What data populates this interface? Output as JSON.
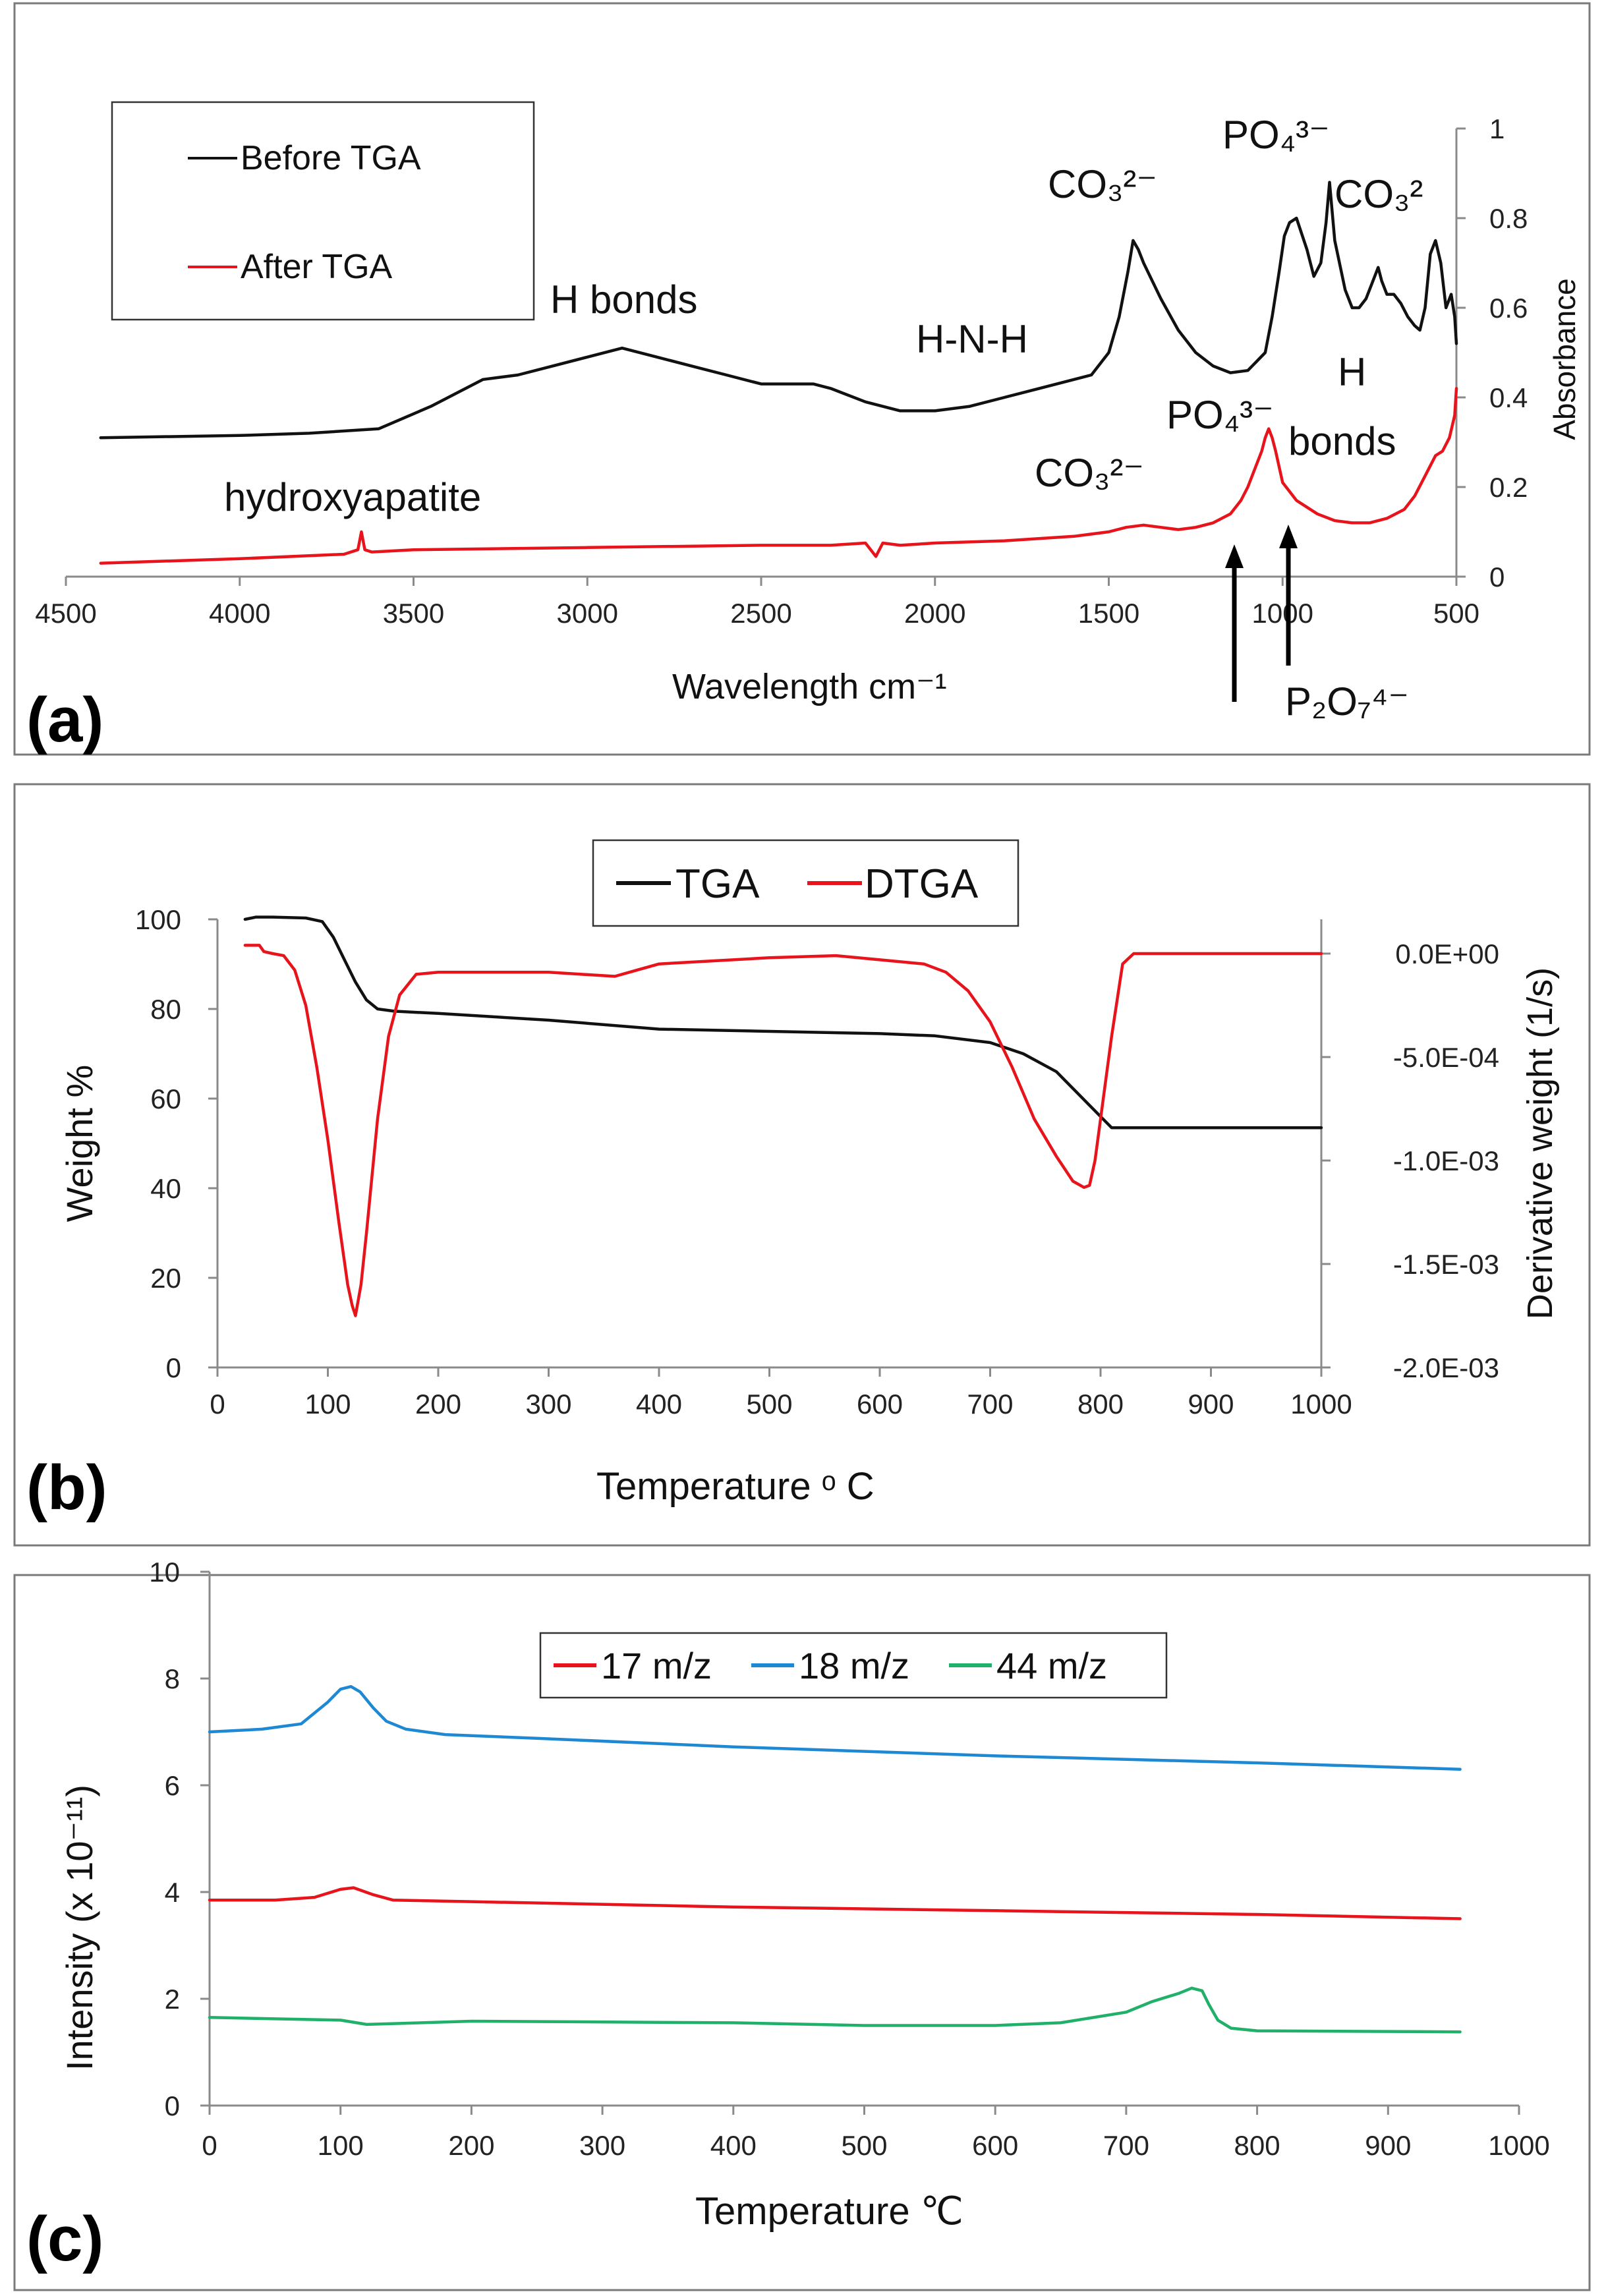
{
  "colors": {
    "before_tga": "#111111",
    "after_tga": "#e8141c",
    "tga": "#111111",
    "dtga": "#e8141c",
    "mz17": "#e8141c",
    "mz18": "#1e88d2",
    "mz44": "#21b06a"
  },
  "panels": {
    "a": {
      "label": "(a)",
      "xlabel": "Wavelength cm⁻¹",
      "ylabel": "Absorbance",
      "legend": [
        "Before TGA",
        "After TGA"
      ],
      "annotations": {
        "h_bonds": "H bonds",
        "hnh": "H-N-H",
        "co3_top_a": "CO₃²⁻",
        "po4_top": "PO₄³⁻",
        "co3_top_b": "CO₃²",
        "h_right": "H",
        "bonds_right": "bonds",
        "hydroxyapatite": "hydroxyapatite",
        "co3_bottom": "CO₃²⁻",
        "po4_bottom": "PO₄³⁻",
        "p2o7": "P₂O₇⁴⁻"
      }
    },
    "b": {
      "label": "(b)",
      "xlabel": "Temperature ᵒ C",
      "ylabel": "Weight %",
      "y2label": "Derivative weight (1/s)",
      "legend": [
        "TGA",
        "DTGA"
      ]
    },
    "c": {
      "label": "(c)",
      "xlabel": "Temperature ℃",
      "ylabel": "Intensity (x 10⁻¹¹)",
      "legend": [
        "17 m/z",
        "18 m/z",
        "44 m/z"
      ]
    }
  },
  "chart_data": [
    {
      "type": "line",
      "panel": "a",
      "xlabel": "Wavelength cm⁻¹",
      "ylabel": "Absorbance",
      "xlim": [
        4500,
        500
      ],
      "ylim": [
        0,
        1
      ],
      "x_reversed": true,
      "x_ticks": [
        4500,
        4000,
        3500,
        3000,
        2500,
        2000,
        1500,
        1000,
        500
      ],
      "x_tick_labels": [
        "4500",
        "4000",
        "3500",
        "3000",
        "2500",
        "2000",
        "1500",
        "1000",
        "500"
      ],
      "y_ticks": [
        0,
        0.2,
        0.4,
        0.6,
        0.8,
        1
      ],
      "y_tick_labels": [
        "0",
        "0.2",
        "0.4",
        "0.6",
        "0.8",
        "1"
      ],
      "grid": false,
      "legend_position": "top-left",
      "series": [
        {
          "name": "Before TGA",
          "x": [
            4400,
            4000,
            3800,
            3600,
            3450,
            3300,
            3200,
            3100,
            3000,
            2900,
            2800,
            2700,
            2600,
            2500,
            2350,
            2300,
            2200,
            2100,
            2000,
            1900,
            1800,
            1700,
            1600,
            1550,
            1500,
            1470,
            1445,
            1430,
            1415,
            1400,
            1350,
            1300,
            1250,
            1200,
            1150,
            1100,
            1050,
            1030,
            1010,
            995,
            980,
            960,
            930,
            910,
            890,
            875,
            865,
            850,
            820,
            800,
            780,
            760,
            740,
            725,
            715,
            700,
            680,
            660,
            640,
            620,
            605,
            590,
            575,
            560,
            545,
            530,
            515,
            505,
            500
          ],
          "y": [
            0.31,
            0.315,
            0.32,
            0.33,
            0.38,
            0.44,
            0.45,
            0.47,
            0.49,
            0.51,
            0.49,
            0.47,
            0.45,
            0.43,
            0.43,
            0.42,
            0.39,
            0.37,
            0.37,
            0.38,
            0.4,
            0.42,
            0.44,
            0.45,
            0.5,
            0.58,
            0.68,
            0.75,
            0.73,
            0.7,
            0.62,
            0.55,
            0.5,
            0.47,
            0.455,
            0.46,
            0.5,
            0.58,
            0.68,
            0.76,
            0.79,
            0.8,
            0.73,
            0.67,
            0.7,
            0.79,
            0.88,
            0.75,
            0.64,
            0.6,
            0.6,
            0.62,
            0.66,
            0.69,
            0.66,
            0.63,
            0.63,
            0.61,
            0.58,
            0.56,
            0.55,
            0.6,
            0.72,
            0.75,
            0.7,
            0.6,
            0.63,
            0.58,
            0.52
          ]
        },
        {
          "name": "After TGA",
          "x": [
            4400,
            4000,
            3700,
            3660,
            3650,
            3640,
            3620,
            3500,
            3000,
            2500,
            2300,
            2200,
            2170,
            2150,
            2100,
            2000,
            1800,
            1600,
            1500,
            1450,
            1400,
            1350,
            1300,
            1250,
            1200,
            1150,
            1120,
            1100,
            1080,
            1060,
            1050,
            1040,
            1030,
            1020,
            1000,
            980,
            960,
            900,
            850,
            800,
            750,
            700,
            650,
            620,
            600,
            580,
            560,
            540,
            520,
            505,
            500
          ],
          "y": [
            0.03,
            0.04,
            0.05,
            0.06,
            0.1,
            0.06,
            0.055,
            0.06,
            0.065,
            0.07,
            0.07,
            0.075,
            0.045,
            0.075,
            0.07,
            0.075,
            0.08,
            0.09,
            0.1,
            0.11,
            0.115,
            0.11,
            0.105,
            0.11,
            0.12,
            0.14,
            0.17,
            0.2,
            0.24,
            0.28,
            0.31,
            0.33,
            0.31,
            0.28,
            0.21,
            0.19,
            0.17,
            0.14,
            0.125,
            0.12,
            0.12,
            0.13,
            0.15,
            0.18,
            0.21,
            0.24,
            0.27,
            0.28,
            0.31,
            0.36,
            0.42
          ]
        }
      ]
    },
    {
      "type": "line",
      "panel": "b",
      "xlabel": "Temperature ᵒ C",
      "ylabel": "Weight %",
      "y2label": "Derivative weight (1/s)",
      "xlim": [
        0,
        1000
      ],
      "ylim": [
        0,
        100
      ],
      "y2lim": [
        -0.002,
        0.0002
      ],
      "x_ticks": [
        0,
        100,
        200,
        300,
        400,
        500,
        600,
        700,
        800,
        900,
        1000
      ],
      "x_tick_labels": [
        "0",
        "100",
        "200",
        "300",
        "400",
        "500",
        "600",
        "700",
        "800",
        "900",
        "1000"
      ],
      "y_ticks": [
        0,
        20,
        40,
        60,
        80,
        100
      ],
      "y_tick_labels": [
        "0",
        "20",
        "40",
        "60",
        "80",
        "100"
      ],
      "y2_ticks": [
        0,
        -0.0005,
        -0.001,
        -0.0015,
        -0.002
      ],
      "y2_tick_labels": [
        "0.0E+00",
        "-5.0E-04",
        "-1.0E-03",
        "-1.5E-03",
        "-2.0E-03"
      ],
      "grid": false,
      "legend_position": "top-center",
      "series": [
        {
          "name": "TGA",
          "axis": "left",
          "x": [
            25,
            35,
            50,
            80,
            95,
            105,
            115,
            125,
            135,
            145,
            160,
            200,
            300,
            400,
            500,
            600,
            650,
            700,
            730,
            760,
            780,
            800,
            810,
            850,
            900,
            1000
          ],
          "y": [
            100,
            100.5,
            100.5,
            100.3,
            99.5,
            96,
            91,
            86,
            82,
            80,
            79.5,
            79,
            77.5,
            75.5,
            75,
            74.5,
            74,
            72.5,
            70,
            66,
            61,
            56,
            53.5,
            53.5,
            53.5,
            53.5
          ]
        },
        {
          "name": "DTGA",
          "axis": "right",
          "x": [
            25,
            38,
            42,
            50,
            60,
            70,
            80,
            90,
            100,
            110,
            118,
            122,
            125,
            130,
            135,
            145,
            155,
            165,
            180,
            200,
            300,
            360,
            380,
            400,
            500,
            560,
            600,
            640,
            660,
            680,
            700,
            720,
            740,
            760,
            775,
            785,
            790,
            795,
            800,
            810,
            820,
            830,
            900,
            1000
          ],
          "y": [
            4e-05,
            4e-05,
            1e-05,
            0.0,
            -1e-05,
            -8e-05,
            -0.00025,
            -0.00055,
            -0.0009,
            -0.0013,
            -0.0016,
            -0.0017,
            -0.00175,
            -0.0016,
            -0.00135,
            -0.0008,
            -0.0004,
            -0.0002,
            -0.0001,
            -9e-05,
            -9e-05,
            -0.00011,
            -8e-05,
            -5e-05,
            -2e-05,
            -1e-05,
            -3e-05,
            -5e-05,
            -9e-05,
            -0.00018,
            -0.00033,
            -0.00055,
            -0.0008,
            -0.00098,
            -0.0011,
            -0.00113,
            -0.00112,
            -0.001,
            -0.0008,
            -0.0004,
            -5e-05,
            0.0,
            0.0,
            0.0
          ]
        }
      ]
    },
    {
      "type": "line",
      "panel": "c",
      "xlabel": "Temperature ℃",
      "ylabel": "Intensity (x 10⁻¹¹)",
      "xlim": [
        0,
        1000
      ],
      "ylim": [
        0,
        10
      ],
      "x_ticks": [
        0,
        100,
        200,
        300,
        400,
        500,
        600,
        700,
        800,
        900,
        1000
      ],
      "x_tick_labels": [
        "0",
        "100",
        "200",
        "300",
        "400",
        "500",
        "600",
        "700",
        "800",
        "900",
        "1000"
      ],
      "y_ticks": [
        0,
        2,
        4,
        6,
        8,
        10
      ],
      "y_tick_labels": [
        "0",
        "2",
        "4",
        "6",
        "8",
        "10"
      ],
      "grid": false,
      "legend_position": "top-center",
      "series": [
        {
          "name": "17 m/z",
          "x": [
            0,
            50,
            80,
            100,
            110,
            125,
            140,
            200,
            400,
            600,
            800,
            955
          ],
          "y": [
            3.85,
            3.85,
            3.9,
            4.05,
            4.08,
            3.95,
            3.85,
            3.82,
            3.72,
            3.65,
            3.58,
            3.5
          ]
        },
        {
          "name": "18 m/z",
          "x": [
            0,
            40,
            70,
            90,
            100,
            108,
            115,
            125,
            135,
            150,
            180,
            250,
            400,
            600,
            800,
            955
          ],
          "y": [
            7.0,
            7.05,
            7.15,
            7.55,
            7.8,
            7.85,
            7.75,
            7.45,
            7.2,
            7.05,
            6.95,
            6.88,
            6.72,
            6.55,
            6.42,
            6.3
          ]
        },
        {
          "name": "44 m/z",
          "x": [
            0,
            100,
            120,
            200,
            400,
            500,
            600,
            650,
            700,
            720,
            740,
            750,
            758,
            763,
            770,
            780,
            800,
            955
          ],
          "y": [
            1.65,
            1.6,
            1.52,
            1.58,
            1.55,
            1.5,
            1.5,
            1.55,
            1.75,
            1.95,
            2.1,
            2.2,
            2.15,
            1.9,
            1.6,
            1.45,
            1.4,
            1.38
          ]
        }
      ]
    }
  ]
}
